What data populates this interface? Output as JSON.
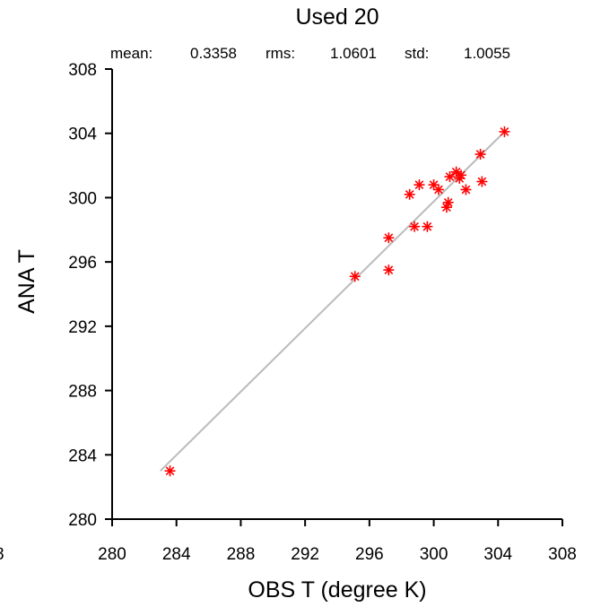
{
  "chart_data": {
    "type": "scatter",
    "title": "Used  20",
    "stats": {
      "mean_label": "mean:",
      "mean_value": "0.3358",
      "rms_label": "rms:",
      "rms_value": "1.0601",
      "std_label": "std:",
      "std_value": "1.0055"
    },
    "xlabel": "OBS T  (degree K)",
    "ylabel": "ANA T",
    "xlim": [
      280,
      308
    ],
    "ylim": [
      280,
      308
    ],
    "x_ticks": [
      "280",
      "284",
      "288",
      "292",
      "296",
      "300",
      "304",
      "308"
    ],
    "y_ticks": [
      "280",
      "284",
      "288",
      "292",
      "296",
      "300",
      "304",
      "308"
    ],
    "stray_left_label": "8",
    "grid": false,
    "marker": "asterisk",
    "marker_color": "#ff0000",
    "fit_line_color": "#bbbbbb",
    "fit_line": {
      "x": [
        283.0,
        304.2
      ],
      "y": [
        283.0,
        303.9
      ]
    },
    "points": [
      {
        "x": 283.6,
        "y": 283.0
      },
      {
        "x": 295.1,
        "y": 295.1
      },
      {
        "x": 297.2,
        "y": 295.5
      },
      {
        "x": 297.2,
        "y": 297.5
      },
      {
        "x": 298.8,
        "y": 298.2
      },
      {
        "x": 299.6,
        "y": 298.2
      },
      {
        "x": 298.5,
        "y": 300.2
      },
      {
        "x": 299.1,
        "y": 300.8
      },
      {
        "x": 300.0,
        "y": 300.8
      },
      {
        "x": 300.3,
        "y": 300.5
      },
      {
        "x": 300.8,
        "y": 299.4
      },
      {
        "x": 300.9,
        "y": 299.7
      },
      {
        "x": 301.0,
        "y": 301.3
      },
      {
        "x": 301.4,
        "y": 301.6
      },
      {
        "x": 301.6,
        "y": 301.2
      },
      {
        "x": 301.7,
        "y": 301.4
      },
      {
        "x": 302.0,
        "y": 300.5
      },
      {
        "x": 302.9,
        "y": 302.7
      },
      {
        "x": 303.0,
        "y": 301.0
      },
      {
        "x": 304.4,
        "y": 304.1
      }
    ]
  }
}
